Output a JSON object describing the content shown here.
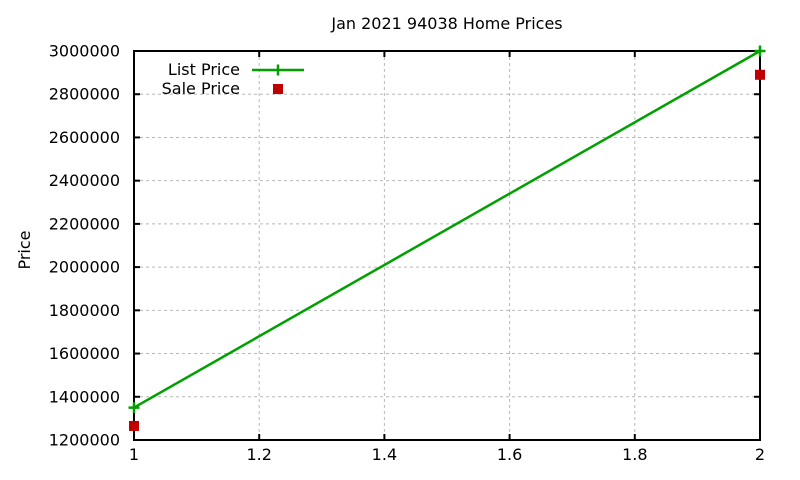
{
  "window": {
    "background": "#ffffff"
  },
  "chart_data": {
    "type": "line",
    "title": "Jan 2021 94038 Home Prices",
    "xlabel": "",
    "ylabel": "Price",
    "xlim": [
      1,
      2
    ],
    "ylim": [
      1200000,
      3000000
    ],
    "x_ticks": [
      1,
      1.2,
      1.4,
      1.6,
      1.8,
      2
    ],
    "x_tick_labels": [
      "1",
      "1.2",
      "1.4",
      "1.6",
      "1.8",
      "2"
    ],
    "y_ticks": [
      1200000,
      1400000,
      1600000,
      1800000,
      2000000,
      2200000,
      2400000,
      2600000,
      2800000,
      3000000
    ],
    "y_tick_labels": [
      "1200000",
      "1400000",
      "1600000",
      "1800000",
      "2000000",
      "2200000",
      "2400000",
      "2600000",
      "2800000",
      "3000000"
    ],
    "grid": true,
    "grid_color": "#b8b8b8",
    "axis_color": "#000000",
    "text_color": "#000000",
    "legend_position": "top-left",
    "series": [
      {
        "name": "List Price",
        "type": "line",
        "marker": "plus",
        "color": "#00a000",
        "x": [
          1,
          2
        ],
        "y": [
          1350000,
          3000000
        ]
      },
      {
        "name": "Sale Price",
        "type": "scatter",
        "marker": "square",
        "color": "#c00000",
        "x": [
          1,
          2
        ],
        "y": [
          1265000,
          2890000
        ]
      }
    ]
  }
}
